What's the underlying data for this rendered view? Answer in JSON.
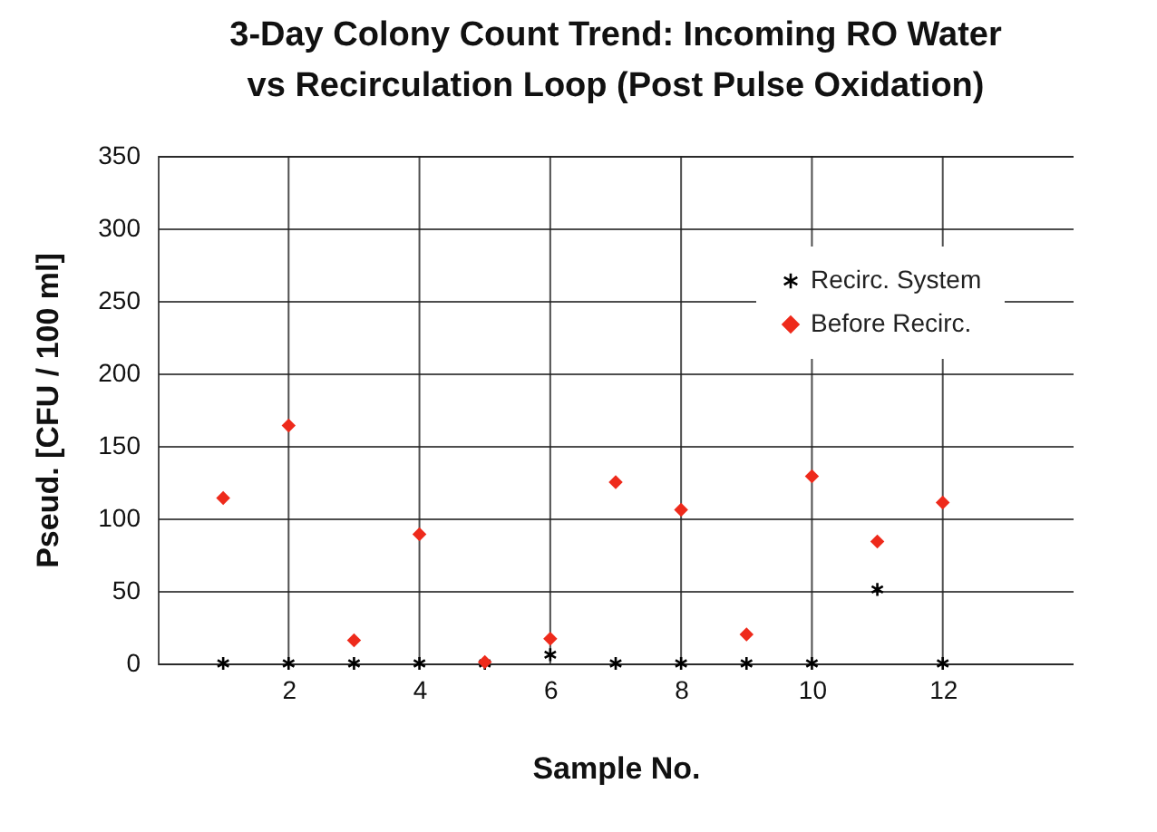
{
  "chart_data": {
    "type": "scatter",
    "title": "3-Day Colony Count Trend: Incoming RO Water vs Recirculation Loop (Post Pulse Oxidation)",
    "xlabel": "Sample No.",
    "ylabel": "Pseud. [CFU / 100 ml]",
    "x": [
      1,
      2,
      3,
      4,
      5,
      6,
      7,
      8,
      9,
      10,
      11,
      12
    ],
    "series": [
      {
        "name": "Recirc. System",
        "color": "#000000",
        "marker": "cross",
        "values": [
          0,
          0,
          0,
          0,
          0,
          6,
          0,
          0,
          0,
          0,
          51,
          0
        ]
      },
      {
        "name": "Before Recirc.",
        "color": "#ee2a1b",
        "marker": "diamond",
        "values": [
          114,
          164,
          16,
          89,
          1,
          17,
          125,
          106,
          20,
          129,
          84,
          111
        ]
      }
    ],
    "xlim": [
      0,
      14
    ],
    "xticks": [
      2,
      4,
      6,
      8,
      10,
      12
    ],
    "ylim": [
      0,
      350
    ],
    "yticks": [
      0,
      50,
      100,
      150,
      200,
      250,
      300,
      350
    ],
    "grid": true,
    "legend": "top right"
  }
}
